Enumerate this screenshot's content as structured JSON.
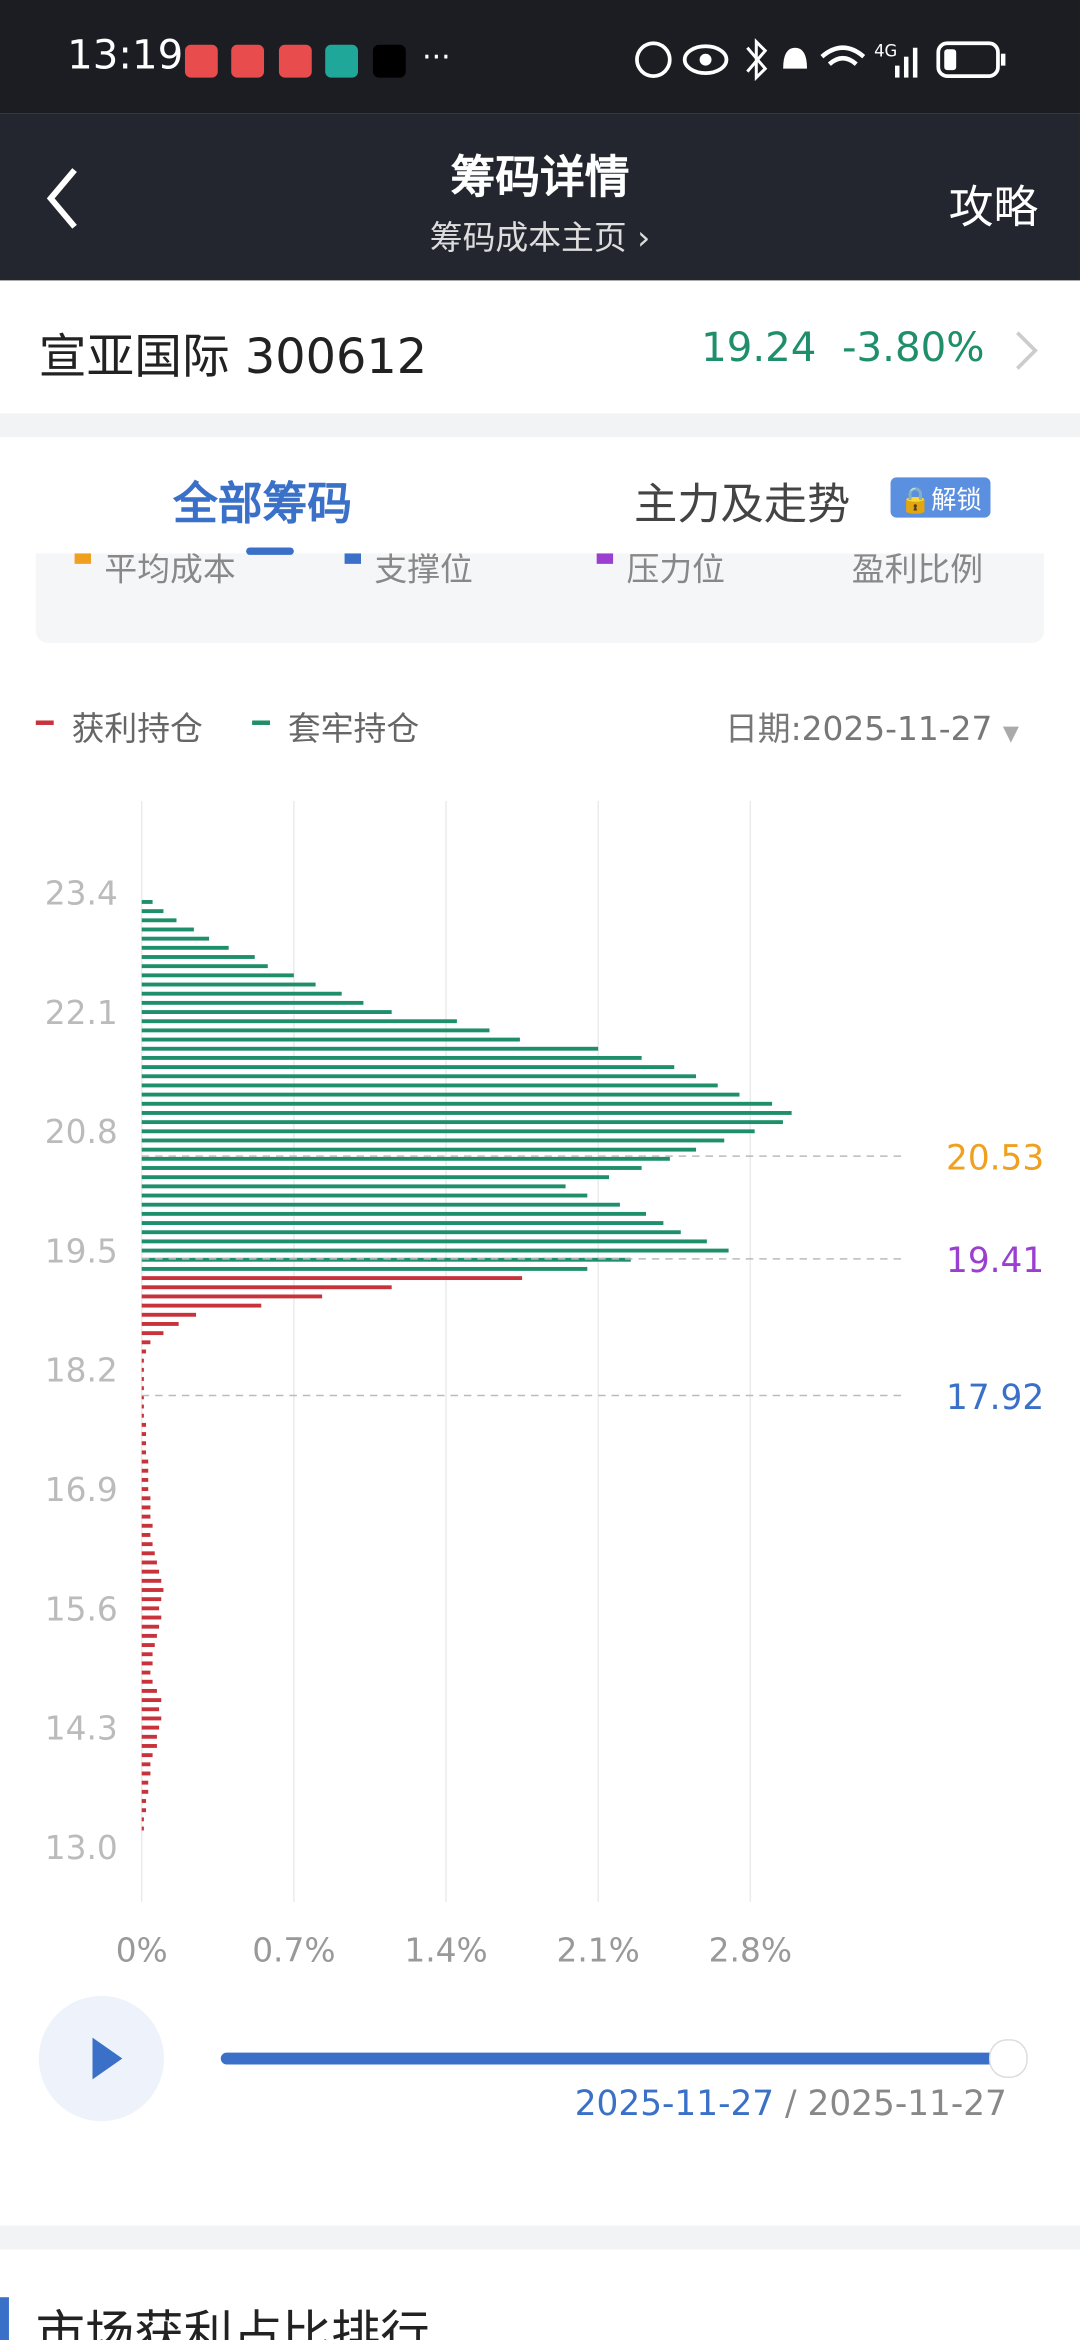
{
  "status_bar": {
    "time": "13:19",
    "more": "···",
    "network": "4G"
  },
  "header": {
    "title": "筹码详情",
    "subtitle": "筹码成本主页",
    "action": "攻略"
  },
  "stock": {
    "name": "宣亚国际",
    "code": "300612",
    "price": "19.24",
    "change": "-3.80%"
  },
  "tabs": {
    "active": "全部筹码",
    "other": "主力及走势",
    "badge": "解锁"
  },
  "indicators": [
    "平均成本",
    "支撑位",
    "压力位",
    "盈利比例"
  ],
  "date_label": "日期:2025-11-27",
  "chart_data": {
    "type": "bar",
    "orientation": "horizontal",
    "series": [
      {
        "name": "获利持仓",
        "color": "#c8323a",
        "y": [
          19.2,
          19.1,
          19.0,
          18.9,
          18.8,
          18.7,
          18.6,
          18.5,
          18.4,
          18.3,
          18.2,
          18.1,
          18.0,
          17.9,
          17.8,
          17.7,
          17.6,
          17.5,
          17.4,
          17.3,
          17.2,
          17.1,
          17.0,
          16.9,
          16.8,
          16.7,
          16.6,
          16.5,
          16.4,
          16.3,
          16.2,
          16.1,
          16.0,
          15.9,
          15.8,
          15.7,
          15.6,
          15.5,
          15.4,
          15.3,
          15.2,
          15.1,
          15.0,
          14.9,
          14.8,
          14.7,
          14.6,
          14.5,
          14.4,
          14.3,
          14.2,
          14.1,
          14.0,
          13.9,
          13.8,
          13.7,
          13.6,
          13.5,
          13.4,
          13.3,
          13.2
        ],
        "values": [
          1.75,
          1.15,
          0.83,
          0.55,
          0.25,
          0.17,
          0.1,
          0.04,
          0.02,
          0.01,
          0.01,
          0.01,
          0.01,
          0.01,
          0.01,
          0.01,
          0.02,
          0.02,
          0.02,
          0.02,
          0.03,
          0.03,
          0.03,
          0.03,
          0.04,
          0.04,
          0.04,
          0.05,
          0.04,
          0.05,
          0.06,
          0.07,
          0.08,
          0.09,
          0.1,
          0.09,
          0.08,
          0.09,
          0.08,
          0.07,
          0.06,
          0.05,
          0.05,
          0.04,
          0.05,
          0.07,
          0.09,
          0.08,
          0.09,
          0.08,
          0.07,
          0.07,
          0.05,
          0.04,
          0.04,
          0.03,
          0.03,
          0.02,
          0.02,
          0.01,
          0.01
        ]
      },
      {
        "name": "套牢持仓",
        "color": "#1e8f6a",
        "y": [
          23.3,
          23.2,
          23.1,
          23.0,
          22.9,
          22.8,
          22.7,
          22.6,
          22.5,
          22.4,
          22.3,
          22.2,
          22.1,
          22.0,
          21.9,
          21.8,
          21.7,
          21.6,
          21.5,
          21.4,
          21.3,
          21.2,
          21.1,
          21.0,
          20.9,
          20.8,
          20.7,
          20.6,
          20.5,
          20.4,
          20.3,
          20.2,
          20.1,
          20.0,
          19.9,
          19.8,
          19.7,
          19.6,
          19.5,
          19.4,
          19.3
        ],
        "values": [
          0.05,
          0.1,
          0.16,
          0.24,
          0.31,
          0.4,
          0.52,
          0.58,
          0.7,
          0.8,
          0.92,
          1.02,
          1.15,
          1.45,
          1.6,
          1.74,
          2.1,
          2.3,
          2.45,
          2.55,
          2.65,
          2.75,
          2.9,
          2.99,
          2.95,
          2.82,
          2.68,
          2.55,
          2.43,
          2.3,
          2.15,
          1.95,
          2.05,
          2.2,
          2.32,
          2.4,
          2.48,
          2.6,
          2.7,
          2.25,
          2.05
        ]
      }
    ],
    "lines": [
      {
        "value": 20.53,
        "color": "#f0a020"
      },
      {
        "value": 19.41,
        "color": "#9b3fd0"
      },
      {
        "value": 17.92,
        "color": "#3a70c8"
      }
    ],
    "xlim": [
      0,
      3.5
    ],
    "xticks": [
      {
        "value": 0,
        "label": "0%"
      },
      {
        "value": 0.7,
        "label": "0.7%"
      },
      {
        "value": 1.4,
        "label": "1.4%"
      },
      {
        "value": 2.1,
        "label": "2.1%"
      },
      {
        "value": 2.8,
        "label": "2.8%"
      }
    ],
    "ylim": [
      12.4,
      24.4
    ],
    "yticks": [
      23.4,
      22.1,
      20.8,
      19.5,
      18.2,
      16.9,
      15.6,
      14.3,
      {
        "value": 13,
        "label": "13.0"
      }
    ],
    "grid": true
  },
  "player": {
    "current": "2025-11-27",
    "end": "2025-11-27"
  },
  "section": {
    "title": "市场获利占比排行"
  }
}
